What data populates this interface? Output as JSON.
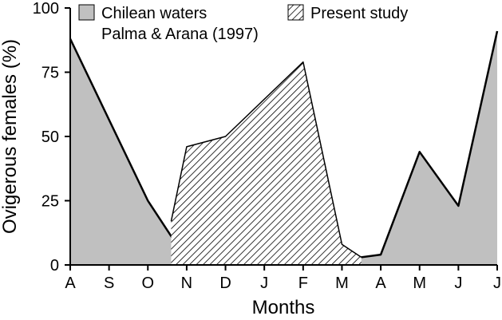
{
  "chart_data": {
    "type": "area",
    "xlabel": "Months",
    "ylabel": "Ovigerous females (%)",
    "ylim": [
      0,
      100
    ],
    "yticks": [
      0,
      25,
      50,
      75,
      100
    ],
    "categories": [
      "A",
      "S",
      "O",
      "N",
      "D",
      "J",
      "F",
      "M",
      "A",
      "M",
      "J",
      "J"
    ],
    "series": [
      {
        "name": "Chilean waters",
        "subtitle": "Palma & Arana (1997)",
        "fill": "#c0c0c0",
        "points": [
          {
            "x": 0,
            "y": 88
          },
          {
            "x": 2,
            "y": 25
          },
          {
            "x": 3,
            "y": 2
          },
          {
            "x": 4,
            "y": 4
          },
          {
            "x": 5,
            "y": 2
          },
          {
            "x": 6,
            "y": 2
          },
          {
            "x": 7,
            "y": 2
          },
          {
            "x": 8,
            "y": 4
          },
          {
            "x": 9,
            "y": 44
          },
          {
            "x": 10,
            "y": 23
          },
          {
            "x": 11,
            "y": 91
          }
        ]
      },
      {
        "name": "Present study",
        "fill": "hatch",
        "points": [
          {
            "x": 2.6,
            "y": 17
          },
          {
            "x": 3,
            "y": 46
          },
          {
            "x": 4,
            "y": 50
          },
          {
            "x": 6,
            "y": 79
          },
          {
            "x": 7,
            "y": 8
          },
          {
            "x": 7.5,
            "y": 3
          }
        ]
      }
    ],
    "legend_position": "top"
  }
}
